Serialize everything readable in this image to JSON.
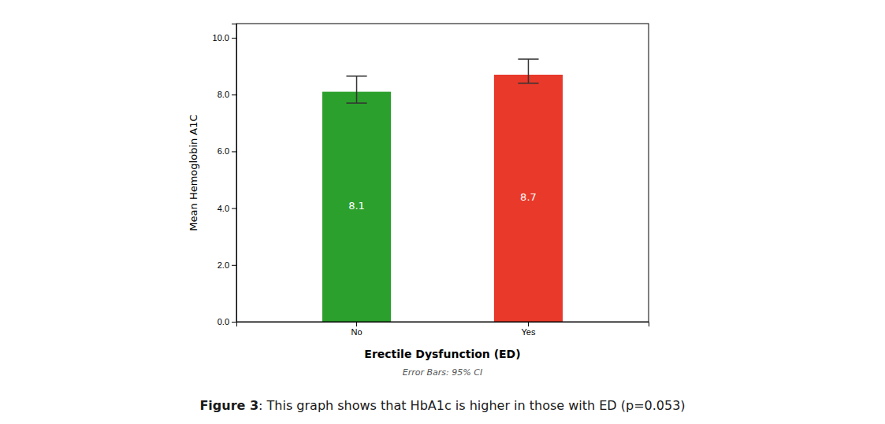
{
  "chart_data": {
    "type": "bar",
    "title": "Figure 3",
    "subtitle": ": This graph shows that HbA1c is higher in those with ED (p=0.053)",
    "xlabel": "Erectile Dysfunction (ED)",
    "ylabel": "Mean Hemoglobin A1C",
    "annotations": [
      {
        "text": "Error Bars: 95% CI"
      }
    ],
    "categories": [
      "No",
      "Yes"
    ],
    "values": [
      8.1,
      8.7
    ],
    "errors_upper": [
      0.55,
      0.55
    ],
    "errors_lower": [
      0.4,
      0.3
    ],
    "colors": [
      "#2ca02c",
      "#e8392a"
    ],
    "ylim": [
      0,
      10.5
    ],
    "yticks": [
      {
        "value": 0.0,
        "label": "0.0"
      },
      {
        "value": 2.0,
        "label": "2.0"
      },
      {
        "value": 4.0,
        "label": "4.0"
      },
      {
        "value": 6.0,
        "label": "6.0"
      },
      {
        "value": 8.0,
        "label": "8.0"
      },
      {
        "value": 10.0,
        "label": "10.0"
      }
    ],
    "data_labels": true,
    "grid": false
  }
}
